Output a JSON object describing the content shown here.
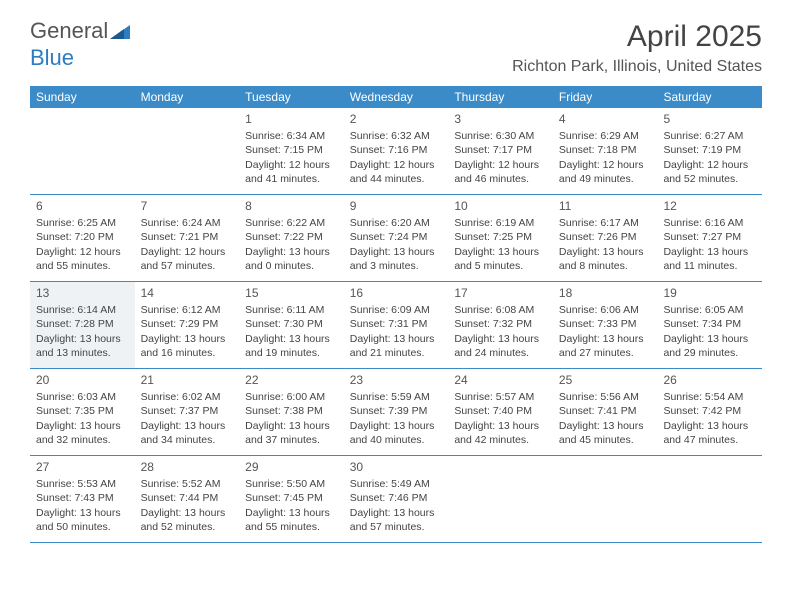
{
  "logo": {
    "part1": "General",
    "part2": "Blue"
  },
  "title": "April 2025",
  "location": "Richton Park, Illinois, United States",
  "colors": {
    "header_bg": "#3b8bc9",
    "header_text": "#ffffff",
    "border": "#3b8bc9",
    "text": "#444444",
    "shaded_bg": "#eef2f5",
    "logo_gray": "#555555",
    "logo_blue": "#2d7dc0"
  },
  "day_headers": [
    "Sunday",
    "Monday",
    "Tuesday",
    "Wednesday",
    "Thursday",
    "Friday",
    "Saturday"
  ],
  "weeks": [
    [
      {
        "n": "",
        "sr": "",
        "ss": "",
        "dl": ""
      },
      {
        "n": "",
        "sr": "",
        "ss": "",
        "dl": ""
      },
      {
        "n": "1",
        "sr": "6:34 AM",
        "ss": "7:15 PM",
        "dl": "12 hours and 41 minutes."
      },
      {
        "n": "2",
        "sr": "6:32 AM",
        "ss": "7:16 PM",
        "dl": "12 hours and 44 minutes."
      },
      {
        "n": "3",
        "sr": "6:30 AM",
        "ss": "7:17 PM",
        "dl": "12 hours and 46 minutes."
      },
      {
        "n": "4",
        "sr": "6:29 AM",
        "ss": "7:18 PM",
        "dl": "12 hours and 49 minutes."
      },
      {
        "n": "5",
        "sr": "6:27 AM",
        "ss": "7:19 PM",
        "dl": "12 hours and 52 minutes."
      }
    ],
    [
      {
        "n": "6",
        "sr": "6:25 AM",
        "ss": "7:20 PM",
        "dl": "12 hours and 55 minutes."
      },
      {
        "n": "7",
        "sr": "6:24 AM",
        "ss": "7:21 PM",
        "dl": "12 hours and 57 minutes."
      },
      {
        "n": "8",
        "sr": "6:22 AM",
        "ss": "7:22 PM",
        "dl": "13 hours and 0 minutes."
      },
      {
        "n": "9",
        "sr": "6:20 AM",
        "ss": "7:24 PM",
        "dl": "13 hours and 3 minutes."
      },
      {
        "n": "10",
        "sr": "6:19 AM",
        "ss": "7:25 PM",
        "dl": "13 hours and 5 minutes."
      },
      {
        "n": "11",
        "sr": "6:17 AM",
        "ss": "7:26 PM",
        "dl": "13 hours and 8 minutes."
      },
      {
        "n": "12",
        "sr": "6:16 AM",
        "ss": "7:27 PM",
        "dl": "13 hours and 11 minutes."
      }
    ],
    [
      {
        "n": "13",
        "sr": "6:14 AM",
        "ss": "7:28 PM",
        "dl": "13 hours and 13 minutes.",
        "shaded": true
      },
      {
        "n": "14",
        "sr": "6:12 AM",
        "ss": "7:29 PM",
        "dl": "13 hours and 16 minutes."
      },
      {
        "n": "15",
        "sr": "6:11 AM",
        "ss": "7:30 PM",
        "dl": "13 hours and 19 minutes."
      },
      {
        "n": "16",
        "sr": "6:09 AM",
        "ss": "7:31 PM",
        "dl": "13 hours and 21 minutes."
      },
      {
        "n": "17",
        "sr": "6:08 AM",
        "ss": "7:32 PM",
        "dl": "13 hours and 24 minutes."
      },
      {
        "n": "18",
        "sr": "6:06 AM",
        "ss": "7:33 PM",
        "dl": "13 hours and 27 minutes."
      },
      {
        "n": "19",
        "sr": "6:05 AM",
        "ss": "7:34 PM",
        "dl": "13 hours and 29 minutes."
      }
    ],
    [
      {
        "n": "20",
        "sr": "6:03 AM",
        "ss": "7:35 PM",
        "dl": "13 hours and 32 minutes."
      },
      {
        "n": "21",
        "sr": "6:02 AM",
        "ss": "7:37 PM",
        "dl": "13 hours and 34 minutes."
      },
      {
        "n": "22",
        "sr": "6:00 AM",
        "ss": "7:38 PM",
        "dl": "13 hours and 37 minutes."
      },
      {
        "n": "23",
        "sr": "5:59 AM",
        "ss": "7:39 PM",
        "dl": "13 hours and 40 minutes."
      },
      {
        "n": "24",
        "sr": "5:57 AM",
        "ss": "7:40 PM",
        "dl": "13 hours and 42 minutes."
      },
      {
        "n": "25",
        "sr": "5:56 AM",
        "ss": "7:41 PM",
        "dl": "13 hours and 45 minutes."
      },
      {
        "n": "26",
        "sr": "5:54 AM",
        "ss": "7:42 PM",
        "dl": "13 hours and 47 minutes."
      }
    ],
    [
      {
        "n": "27",
        "sr": "5:53 AM",
        "ss": "7:43 PM",
        "dl": "13 hours and 50 minutes."
      },
      {
        "n": "28",
        "sr": "5:52 AM",
        "ss": "7:44 PM",
        "dl": "13 hours and 52 minutes."
      },
      {
        "n": "29",
        "sr": "5:50 AM",
        "ss": "7:45 PM",
        "dl": "13 hours and 55 minutes."
      },
      {
        "n": "30",
        "sr": "5:49 AM",
        "ss": "7:46 PM",
        "dl": "13 hours and 57 minutes."
      },
      {
        "n": "",
        "sr": "",
        "ss": "",
        "dl": ""
      },
      {
        "n": "",
        "sr": "",
        "ss": "",
        "dl": ""
      },
      {
        "n": "",
        "sr": "",
        "ss": "",
        "dl": ""
      }
    ]
  ],
  "labels": {
    "sunrise": "Sunrise: ",
    "sunset": "Sunset: ",
    "daylight": "Daylight: "
  }
}
